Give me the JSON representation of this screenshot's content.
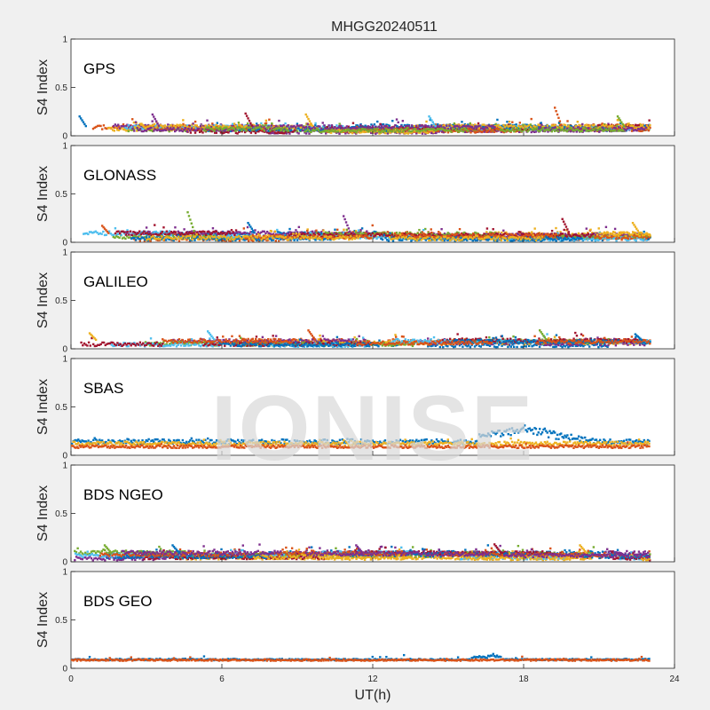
{
  "chart_data": {
    "type": "scatter",
    "title": "MHGG20240511",
    "xlabel": "UT(h)",
    "ylabel": "S4 Index",
    "xlim": [
      0,
      24
    ],
    "ylim": [
      0,
      1
    ],
    "xticks": [
      "0",
      "6",
      "12",
      "18",
      "24"
    ],
    "yticks": [
      "0",
      "0.5",
      "1"
    ],
    "data_end_hour": 23,
    "watermark": "IONISE",
    "palette": [
      "#0072BD",
      "#D95319",
      "#EDB120",
      "#7E2F8E",
      "#77AC30",
      "#4DBEEE",
      "#A2142F"
    ],
    "panels": [
      {
        "label": "GPS",
        "series_count": 12,
        "typical_s4": [
          0.04,
          0.14
        ],
        "peaks": [
          {
            "x": 0.3,
            "y": 0.2
          },
          {
            "x": 3.2,
            "y": 0.22
          },
          {
            "x": 6.9,
            "y": 0.23
          },
          {
            "x": 9.3,
            "y": 0.22
          },
          {
            "x": 14.2,
            "y": 0.2
          },
          {
            "x": 19.2,
            "y": 0.29
          },
          {
            "x": 21.7,
            "y": 0.2
          }
        ]
      },
      {
        "label": "GLONASS",
        "series_count": 10,
        "typical_s4": [
          0.03,
          0.14
        ],
        "peaks": [
          {
            "x": 1.2,
            "y": 0.17
          },
          {
            "x": 4.6,
            "y": 0.31
          },
          {
            "x": 7.0,
            "y": 0.2
          },
          {
            "x": 10.8,
            "y": 0.27
          },
          {
            "x": 19.5,
            "y": 0.24
          },
          {
            "x": 22.3,
            "y": 0.2
          }
        ]
      },
      {
        "label": "GALILEO",
        "series_count": 9,
        "typical_s4": [
          0.03,
          0.13
        ],
        "peaks": [
          {
            "x": 0.7,
            "y": 0.16
          },
          {
            "x": 5.4,
            "y": 0.18
          },
          {
            "x": 9.4,
            "y": 0.19
          },
          {
            "x": 18.6,
            "y": 0.19
          },
          {
            "x": 22.4,
            "y": 0.15
          }
        ]
      },
      {
        "label": "SBAS",
        "series": [
          {
            "color": "#0072BD",
            "level": 0.14,
            "noise": 0.025,
            "bump": {
              "from": 16.2,
              "to": 23,
              "peak": 0.3,
              "peak_x": 17.9
            }
          },
          {
            "color": "#EDB120",
            "level": 0.12,
            "noise": 0.02
          },
          {
            "color": "#D95319",
            "level": 0.09,
            "noise": 0.015
          }
        ]
      },
      {
        "label": "BDS NGEO",
        "series_count": 11,
        "typical_s4": [
          0.03,
          0.14
        ],
        "peaks": [
          {
            "x": 1.3,
            "y": 0.17
          },
          {
            "x": 4.0,
            "y": 0.17
          },
          {
            "x": 11.3,
            "y": 0.17
          },
          {
            "x": 16.8,
            "y": 0.18
          },
          {
            "x": 20.2,
            "y": 0.17
          }
        ]
      },
      {
        "label": "BDS GEO",
        "series": [
          {
            "color": "#0072BD",
            "level": 0.09,
            "noise": 0.008,
            "bump": {
              "from": 15.9,
              "to": 17.1,
              "peak": 0.13,
              "peak_x": 16.7
            }
          },
          {
            "color": "#D95319",
            "level": 0.085,
            "noise": 0.008
          }
        ]
      }
    ]
  }
}
